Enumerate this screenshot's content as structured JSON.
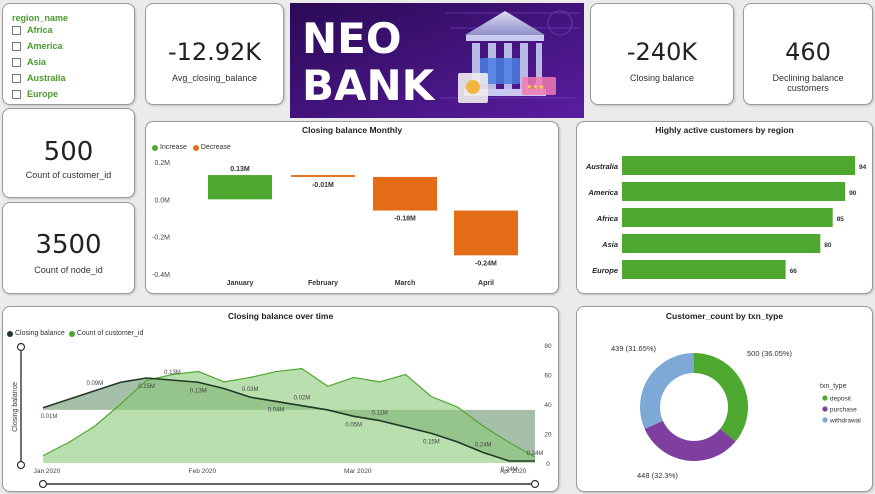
{
  "colors": {
    "green": "#4ea72e",
    "orange": "#e46c16",
    "dark": "#1e3a25",
    "purple": "#7e3fa0",
    "lightblue": "#7ea9d6",
    "banner_bg": "#3b0d6e"
  },
  "slicer": {
    "title": "region_name",
    "items": [
      "Africa",
      "America",
      "Asia",
      "Australia",
      "Europe"
    ]
  },
  "kpis": {
    "avg_closing": {
      "value": "-12.92K",
      "label": "Avg_closing_balance"
    },
    "closing": {
      "value": "-240K",
      "label": "Closing balance"
    },
    "declining": {
      "value": "460",
      "label": "Declining balance customers"
    },
    "customers": {
      "value": "500",
      "label": "Count of customer_id"
    },
    "nodes": {
      "value": "3500",
      "label": "Count of node_id"
    }
  },
  "banner": {
    "line1": "NEO",
    "line2": "BANK",
    "icon": "bank-building-icon"
  },
  "monthly": {
    "title": "Closing balance Monthly",
    "legend": [
      "Increase",
      "Decrease"
    ],
    "y_ticks": [
      "0.2M",
      "0.0M",
      "-0.2M",
      "-0.4M"
    ],
    "chart_data": {
      "type": "waterfall",
      "categories": [
        "January",
        "February",
        "March",
        "April"
      ],
      "values": [
        0.13,
        -0.01,
        -0.18,
        -0.24
      ],
      "labels": [
        "0.13M",
        "-0.01M",
        "-0.18M",
        "-0.24M"
      ],
      "ylim": [
        -0.4,
        0.2
      ]
    }
  },
  "region": {
    "title": "Highly active customers by region",
    "chart_data": {
      "type": "bar",
      "categories": [
        "Australia",
        "America",
        "Africa",
        "Asia",
        "Europe"
      ],
      "values": [
        94,
        90,
        85,
        80,
        66
      ]
    }
  },
  "time": {
    "title": "Closing balance over time",
    "legend": [
      "Closing balance",
      "Count of customer_id"
    ],
    "y_title": "Closing balance",
    "x_ticks": [
      "Jan 2020",
      "Feb 2020",
      "Mar 2020",
      "Apr 2020"
    ],
    "y2_ticks": [
      "80",
      "60",
      "40",
      "20",
      "0"
    ],
    "value_labels": [
      "0.01M",
      "0.09M",
      "0.15M",
      "0.13M",
      "0.13M",
      "0.03M",
      "0.04M",
      "0.02M",
      "0.05M",
      "0.11M",
      "0.15M",
      "0.24M",
      "0.24M",
      "0.24M"
    ],
    "chart_data": {
      "type": "area",
      "series": [
        {
          "name": "Closing balance",
          "values": [
            0.01,
            0.05,
            0.09,
            0.13,
            0.15,
            0.14,
            0.13,
            0.1,
            0.06,
            0.04,
            0.02,
            0.0,
            -0.03,
            -0.05,
            -0.08,
            -0.11,
            -0.15,
            -0.2,
            -0.24,
            -0.24
          ]
        },
        {
          "name": "Count of customer_id",
          "values": [
            5,
            14,
            25,
            40,
            56,
            60,
            62,
            55,
            58,
            62,
            64,
            52,
            58,
            55,
            60,
            45,
            38,
            25,
            14,
            4
          ]
        }
      ],
      "y2lim": [
        0,
        80
      ]
    }
  },
  "donut": {
    "title": "Customer_count by txn_type",
    "legend_title": "txn_type",
    "chart_data": {
      "type": "pie",
      "categories": [
        "deposit",
        "purchase",
        "withdrawal"
      ],
      "values": [
        500,
        448,
        439
      ],
      "labels": [
        "500 (36.05%)",
        "448 (32.3%)",
        "439 (31.65%)"
      ]
    }
  }
}
